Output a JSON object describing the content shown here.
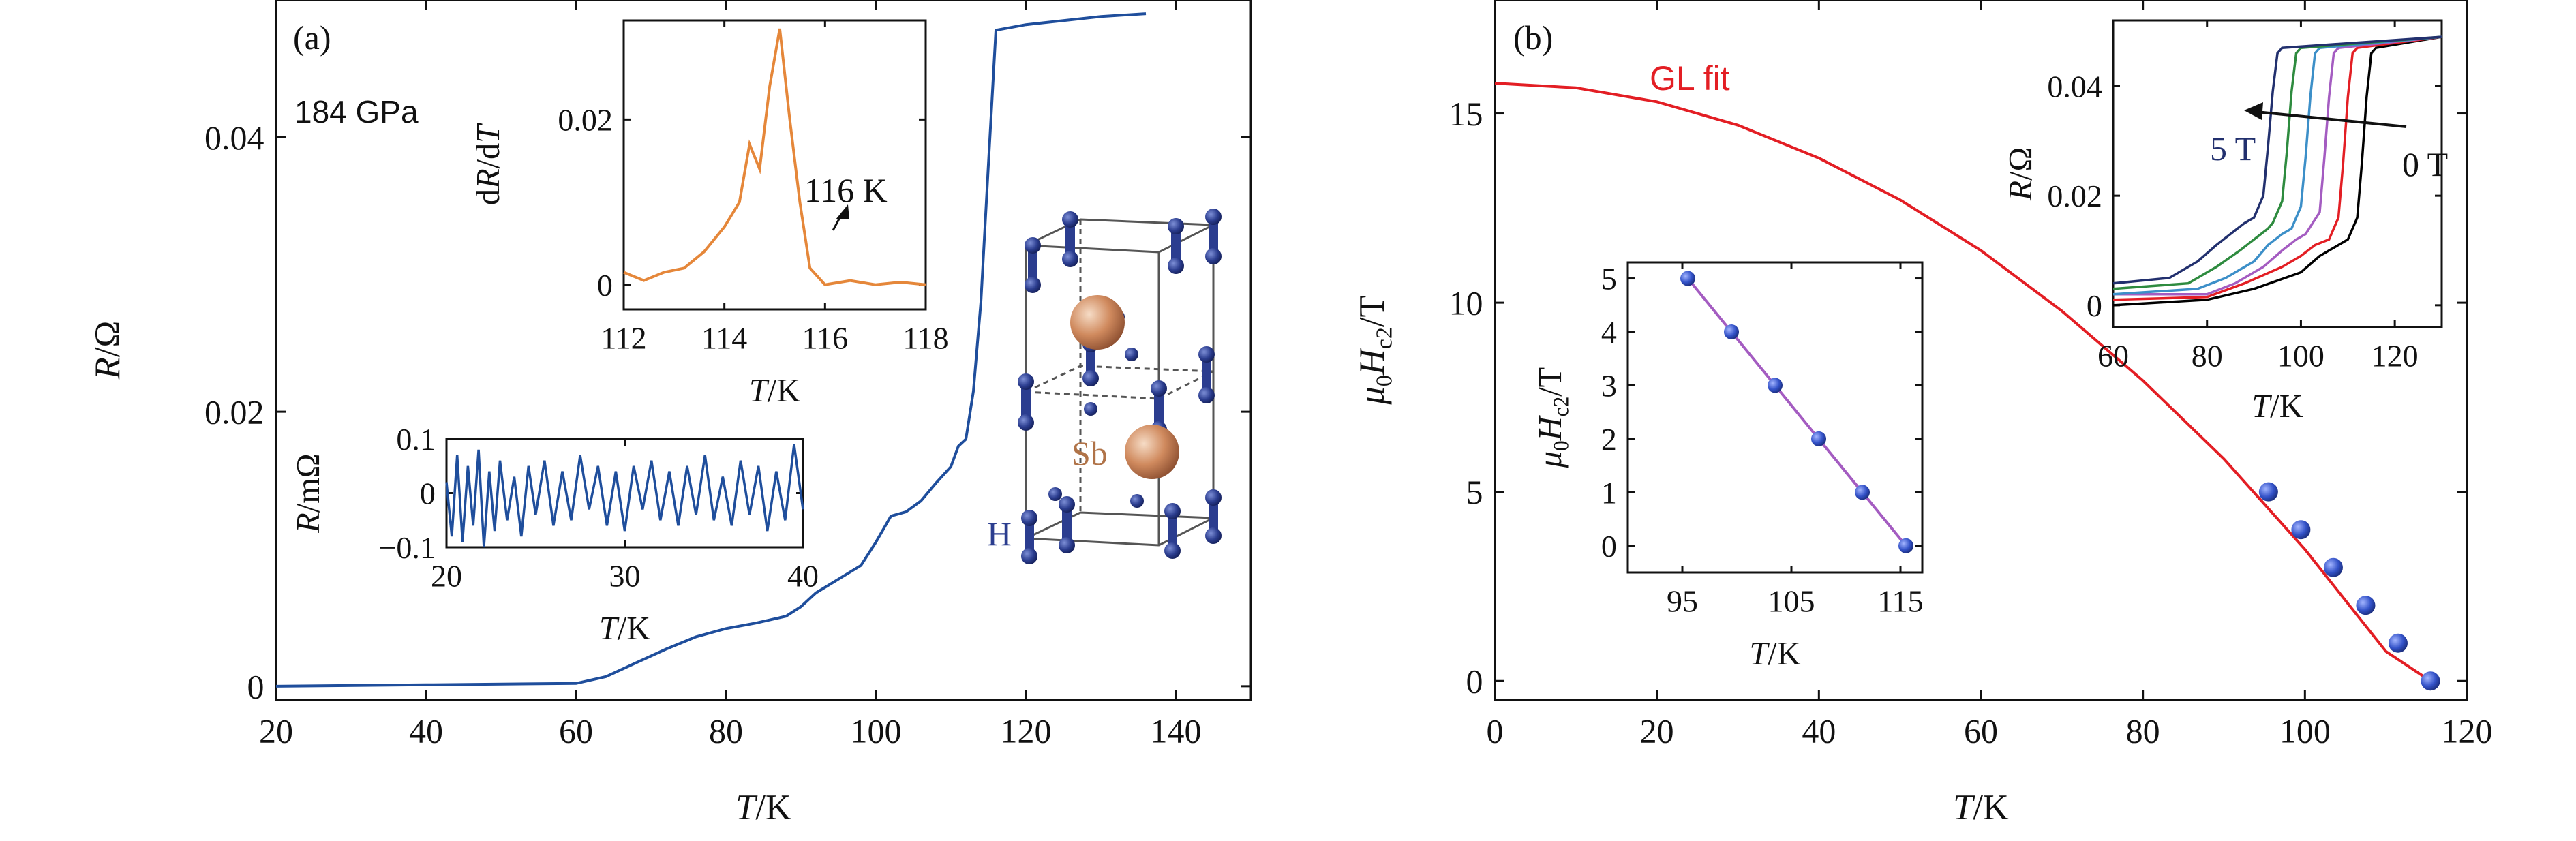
{
  "panels": {
    "a": {
      "tag": "(a)",
      "pressure": "184 GPa",
      "inset_crystal": {
        "label_h": "H",
        "label_sb": "Sb"
      },
      "inset_drdt": {
        "annotation": "116 K"
      },
      "inset_zoom": {}
    },
    "b": {
      "tag": "(b)",
      "fit_label": "GL fit",
      "inset_rt": {
        "label_high": "5 T",
        "label_low": "0 T"
      },
      "inset_hc2": {}
    }
  },
  "colors": {
    "blue_trace": "#1f4e9c",
    "orange_trace": "#e5873a",
    "fit_red": "#e31e24",
    "purple_line": "#a45cc1",
    "atom_h": "#2b3d8f",
    "atom_sb": "#d08a5e"
  },
  "chart_data": [
    {
      "id": "a-main",
      "type": "line",
      "xlabel": "T/K",
      "ylabel": "R/Ω",
      "xlim": [
        20,
        150
      ],
      "ylim": [
        -0.001,
        0.05
      ],
      "xticks": [
        20,
        40,
        60,
        80,
        100,
        120,
        140
      ],
      "yticks": [
        0,
        0.02,
        0.04
      ],
      "ytick_labels": [
        "0",
        "0.02",
        "0.04"
      ],
      "series": [
        {
          "x": [
            20,
            40,
            60,
            64,
            68,
            72,
            76,
            80,
            84,
            88,
            90,
            92,
            95,
            98,
            100,
            102,
            104,
            106,
            108,
            110,
            111,
            112,
            113,
            114,
            115,
            116,
            120,
            125,
            130,
            136
          ],
          "y": [
            0.0,
            0.0001,
            0.0002,
            0.0007,
            0.0017,
            0.0027,
            0.0036,
            0.0042,
            0.0046,
            0.0051,
            0.0058,
            0.0068,
            0.0078,
            0.0088,
            0.0105,
            0.0124,
            0.0127,
            0.0135,
            0.0148,
            0.016,
            0.0175,
            0.018,
            0.0215,
            0.028,
            0.038,
            0.0478,
            0.0482,
            0.0485,
            0.0488,
            0.049
          ]
        }
      ]
    },
    {
      "id": "a-inset-zoom",
      "type": "line",
      "xlabel": "T/K",
      "ylabel": "R/mΩ",
      "xlim": [
        20,
        40
      ],
      "ylim": [
        -0.1,
        0.1
      ],
      "xticks": [
        20,
        30,
        40
      ],
      "yticks": [
        -0.1,
        0,
        0.1
      ],
      "ytick_labels": [
        "−0.1",
        "0",
        "0.1"
      ],
      "series": [
        {
          "x": [
            20.0,
            20.3,
            20.6,
            20.9,
            21.2,
            21.5,
            21.8,
            22.1,
            22.4,
            22.7,
            23.0,
            23.4,
            23.8,
            24.2,
            24.6,
            25.0,
            25.5,
            26.0,
            26.5,
            27.0,
            27.5,
            28.0,
            28.5,
            29.0,
            29.5,
            30.0,
            30.5,
            31.0,
            31.5,
            32.0,
            32.5,
            33.0,
            33.5,
            34.0,
            34.5,
            35.0,
            35.5,
            36.0,
            36.5,
            37.0,
            37.5,
            38.0,
            38.5,
            39.0,
            39.5,
            40.0
          ],
          "y": [
            0.02,
            -0.08,
            0.07,
            -0.09,
            0.05,
            -0.06,
            0.08,
            -0.1,
            0.04,
            -0.07,
            0.06,
            -0.05,
            0.03,
            -0.08,
            0.05,
            -0.04,
            0.06,
            -0.06,
            0.04,
            -0.05,
            0.07,
            -0.03,
            0.05,
            -0.06,
            0.04,
            -0.07,
            0.05,
            -0.03,
            0.06,
            -0.05,
            0.04,
            -0.06,
            0.05,
            -0.04,
            0.07,
            -0.05,
            0.03,
            -0.06,
            0.06,
            -0.04,
            0.05,
            -0.07,
            0.04,
            -0.05,
            0.09,
            -0.03
          ]
        }
      ]
    },
    {
      "id": "a-inset-drdt",
      "type": "line",
      "xlabel": "T/K",
      "ylabel": "dR/dT",
      "xlim": [
        112,
        118
      ],
      "ylim": [
        -0.003,
        0.032
      ],
      "xticks": [
        112,
        114,
        116,
        118
      ],
      "yticks": [
        0,
        0.02
      ],
      "ytick_labels": [
        "0",
        "0.02"
      ],
      "series": [
        {
          "x": [
            112.0,
            112.4,
            112.8,
            113.2,
            113.6,
            114.0,
            114.3,
            114.5,
            114.7,
            114.9,
            115.1,
            115.3,
            115.5,
            115.7,
            116.0,
            116.5,
            117.0,
            117.5,
            118.0
          ],
          "y": [
            0.0015,
            0.0005,
            0.0015,
            0.002,
            0.004,
            0.007,
            0.01,
            0.017,
            0.014,
            0.024,
            0.031,
            0.02,
            0.01,
            0.002,
            0.0,
            0.0005,
            0.0,
            0.0003,
            0.0
          ]
        }
      ]
    },
    {
      "id": "b-main",
      "type": "line",
      "xlabel": "T/K",
      "ylabel": "μ0Hc2/T",
      "xlim": [
        0,
        120
      ],
      "ylim": [
        -0.5,
        18
      ],
      "xticks": [
        0,
        20,
        40,
        60,
        80,
        100,
        120
      ],
      "yticks": [
        0,
        5,
        10,
        15
      ],
      "series": [
        {
          "name": "GL fit",
          "x": [
            0,
            10,
            20,
            30,
            40,
            50,
            60,
            70,
            80,
            90,
            100,
            110,
            115.5
          ],
          "y": [
            15.8,
            15.68,
            15.31,
            14.69,
            13.82,
            12.72,
            11.38,
            9.78,
            7.94,
            5.87,
            3.48,
            0.78,
            0.0
          ]
        },
        {
          "x": [
            95.5,
            99.5,
            103.5,
            107.5,
            111.5,
            115.5
          ],
          "y": [
            5,
            4,
            3,
            2,
            1,
            0
          ]
        }
      ]
    },
    {
      "id": "b-inset-hc2",
      "type": "line",
      "xlabel": "T/K",
      "ylabel": "μ0Hc2/T",
      "xlim": [
        90,
        117
      ],
      "ylim": [
        -0.5,
        5.3
      ],
      "xticks": [
        95,
        105,
        115
      ],
      "yticks": [
        0,
        1,
        2,
        3,
        4,
        5
      ],
      "series": [
        {
          "x": [
            95.5,
            99.5,
            103.5,
            107.5,
            111.5,
            115.5
          ],
          "y": [
            5,
            4,
            3,
            2,
            1,
            0
          ]
        }
      ]
    },
    {
      "id": "b-inset-rt",
      "type": "line",
      "xlabel": "T/K",
      "ylabel": "R/Ω",
      "xlim": [
        60,
        130
      ],
      "ylim": [
        -0.004,
        0.052
      ],
      "xticks": [
        60,
        80,
        100,
        120
      ],
      "yticks": [
        0,
        0.02,
        0.04
      ],
      "ytick_labels": [
        "0",
        "0.02",
        "0.04"
      ],
      "series": [
        {
          "color": "#000000",
          "x": [
            60,
            80,
            90,
            100,
            104,
            108,
            110,
            112,
            113,
            114,
            115,
            116,
            130
          ],
          "y": [
            0.0,
            0.001,
            0.003,
            0.006,
            0.009,
            0.011,
            0.012,
            0.016,
            0.026,
            0.038,
            0.046,
            0.047,
            0.049
          ]
        },
        {
          "color": "#e31e24",
          "x": [
            60,
            80,
            88,
            96,
            100,
            103,
            106,
            108,
            109,
            110,
            111,
            112,
            130
          ],
          "y": [
            0.001,
            0.0015,
            0.004,
            0.007,
            0.009,
            0.011,
            0.012,
            0.016,
            0.026,
            0.038,
            0.046,
            0.047,
            0.049
          ]
        },
        {
          "color": "#a45cc1",
          "x": [
            60,
            80,
            86,
            92,
            96,
            99,
            101,
            104,
            105,
            106,
            107,
            108,
            130
          ],
          "y": [
            0.002,
            0.002,
            0.004,
            0.007,
            0.01,
            0.012,
            0.013,
            0.017,
            0.027,
            0.038,
            0.046,
            0.047,
            0.049
          ]
        },
        {
          "color": "#3c8fc8",
          "x": [
            60,
            78,
            84,
            90,
            93,
            96,
            98,
            100,
            101,
            102,
            103,
            104,
            130
          ],
          "y": [
            0.002,
            0.003,
            0.005,
            0.008,
            0.011,
            0.013,
            0.014,
            0.018,
            0.027,
            0.038,
            0.046,
            0.047,
            0.049
          ]
        },
        {
          "color": "#2e8b3f",
          "x": [
            60,
            76,
            82,
            87,
            90,
            93,
            94,
            96,
            97,
            98,
            99,
            100,
            130
          ],
          "y": [
            0.003,
            0.004,
            0.007,
            0.01,
            0.012,
            0.014,
            0.015,
            0.019,
            0.028,
            0.039,
            0.046,
            0.047,
            0.049
          ]
        },
        {
          "color": "#22306e",
          "x": [
            60,
            72,
            78,
            82,
            85,
            88,
            90,
            92,
            93,
            94,
            95,
            96,
            130
          ],
          "y": [
            0.004,
            0.005,
            0.008,
            0.011,
            0.013,
            0.015,
            0.016,
            0.02,
            0.029,
            0.039,
            0.046,
            0.047,
            0.049
          ]
        }
      ]
    }
  ]
}
